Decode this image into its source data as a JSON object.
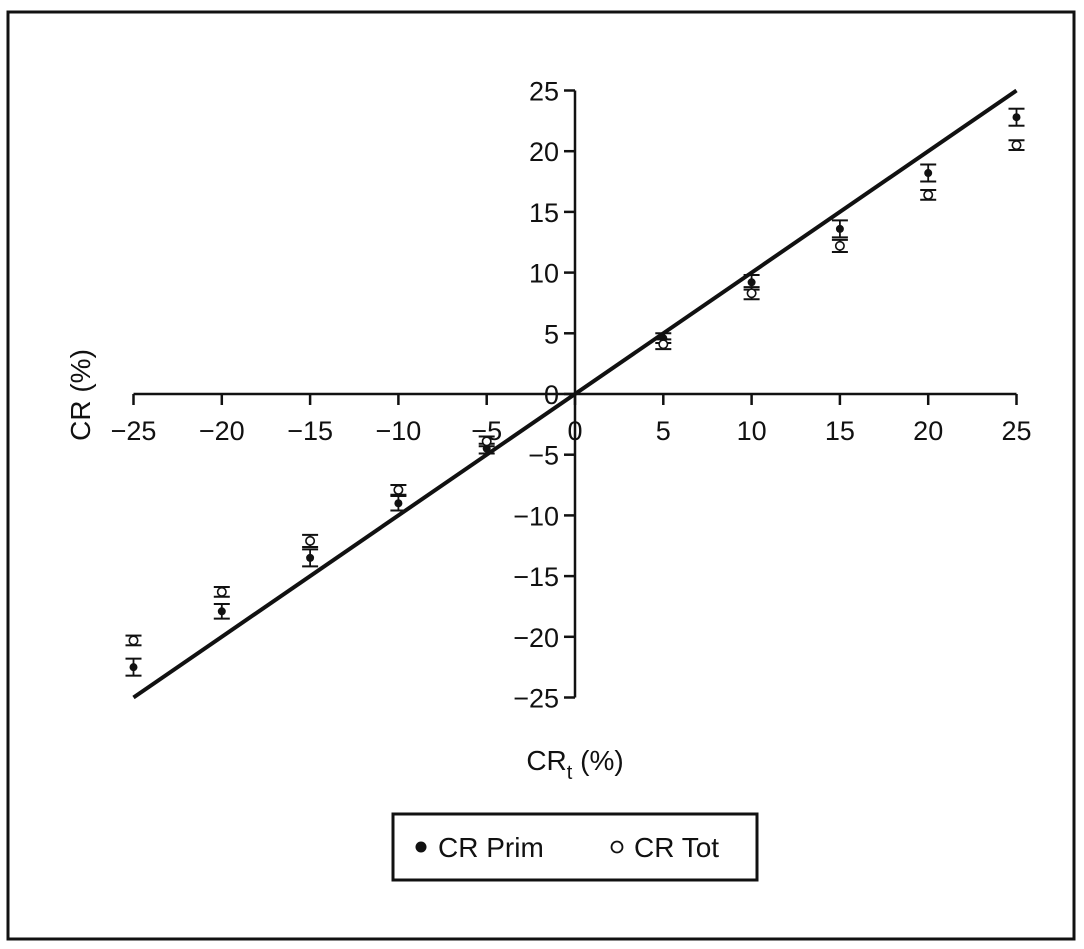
{
  "chart_data": {
    "type": "scatter",
    "title": "",
    "xlabel": {
      "base": "CR",
      "sub": "t",
      "unit": " (%)"
    },
    "ylabel": "CR (%)",
    "xlim": [
      -25,
      25
    ],
    "ylim": [
      -25,
      25
    ],
    "x_ticks": [
      -25,
      -20,
      -15,
      -10,
      -5,
      0,
      5,
      10,
      15,
      20,
      25
    ],
    "y_ticks": [
      -25,
      -20,
      -15,
      -10,
      -5,
      0,
      5,
      10,
      15,
      20,
      25
    ],
    "x_tick_labels": [
      "−25",
      "−20",
      "−15",
      "−10",
      "−5",
      "0",
      "5",
      "10",
      "15",
      "20",
      "25"
    ],
    "y_tick_labels": [
      "−25",
      "−20",
      "−15",
      "−10",
      "−5",
      "0",
      "5",
      "10",
      "15",
      "20",
      "25"
    ],
    "grid": false,
    "identity_line": {
      "from": [
        -25,
        -25
      ],
      "to": [
        25,
        25
      ]
    },
    "legend_placement": "bottom-center",
    "series": [
      {
        "name": "CR Prim",
        "marker": "filled-circle",
        "color": "#111111",
        "points": [
          {
            "x": -25,
            "y": -22.5,
            "err": 0.7
          },
          {
            "x": -20,
            "y": -17.9,
            "err": 0.6
          },
          {
            "x": -15,
            "y": -13.5,
            "err": 0.7
          },
          {
            "x": -10,
            "y": -9.0,
            "err": 0.6
          },
          {
            "x": -5,
            "y": -4.5,
            "err": 0.4
          },
          {
            "x": 5,
            "y": 4.6,
            "err": 0.4
          },
          {
            "x": 10,
            "y": 9.2,
            "err": 0.6
          },
          {
            "x": 15,
            "y": 13.6,
            "err": 0.7
          },
          {
            "x": 20,
            "y": 18.2,
            "err": 0.7
          },
          {
            "x": 25,
            "y": 22.8,
            "err": 0.7
          }
        ]
      },
      {
        "name": "CR Tot",
        "marker": "open-circle",
        "color": "#111111",
        "points": [
          {
            "x": -25,
            "y": -20.3,
            "err": 0.4
          },
          {
            "x": -20,
            "y": -16.3,
            "err": 0.4
          },
          {
            "x": -15,
            "y": -12.1,
            "err": 0.5
          },
          {
            "x": -10,
            "y": -7.9,
            "err": 0.4
          },
          {
            "x": -5,
            "y": -3.9,
            "err": 0.4
          },
          {
            "x": 5,
            "y": 4.1,
            "err": 0.4
          },
          {
            "x": 10,
            "y": 8.3,
            "err": 0.5
          },
          {
            "x": 15,
            "y": 12.2,
            "err": 0.5
          },
          {
            "x": 20,
            "y": 16.4,
            "err": 0.4
          },
          {
            "x": 25,
            "y": 20.5,
            "err": 0.4
          }
        ]
      }
    ]
  }
}
